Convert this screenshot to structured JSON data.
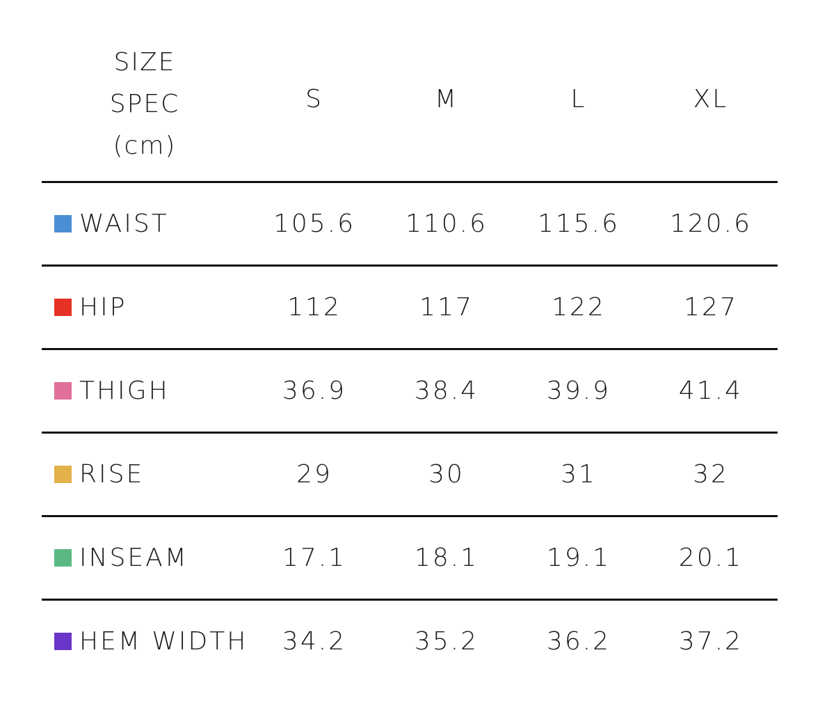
{
  "header": {
    "spec_line1": "SIZE",
    "spec_line2": "SPEC",
    "spec_line3": "(cm)",
    "sizes": [
      "S",
      "M",
      "L",
      "XL"
    ]
  },
  "rows": [
    {
      "label": "WAIST",
      "color": "#4a8fd6",
      "values": [
        "105.6",
        "110.6",
        "115.6",
        "120.6"
      ]
    },
    {
      "label": "HIP",
      "color": "#e63225",
      "values": [
        "112",
        "117",
        "122",
        "127"
      ]
    },
    {
      "label": "THIGH",
      "color": "#e0709a",
      "values": [
        "36.9",
        "38.4",
        "39.9",
        "41.4"
      ]
    },
    {
      "label": "RISE",
      "color": "#e3b14a",
      "values": [
        "29",
        "30",
        "31",
        "32"
      ]
    },
    {
      "label": "INSEAM",
      "color": "#5ab884",
      "values": [
        "17.1",
        "18.1",
        "19.1",
        "20.1"
      ]
    },
    {
      "label": "HEM WIDTH",
      "color": "#6a35c9",
      "values": [
        "34.2",
        "35.2",
        "36.2",
        "37.2"
      ]
    }
  ]
}
